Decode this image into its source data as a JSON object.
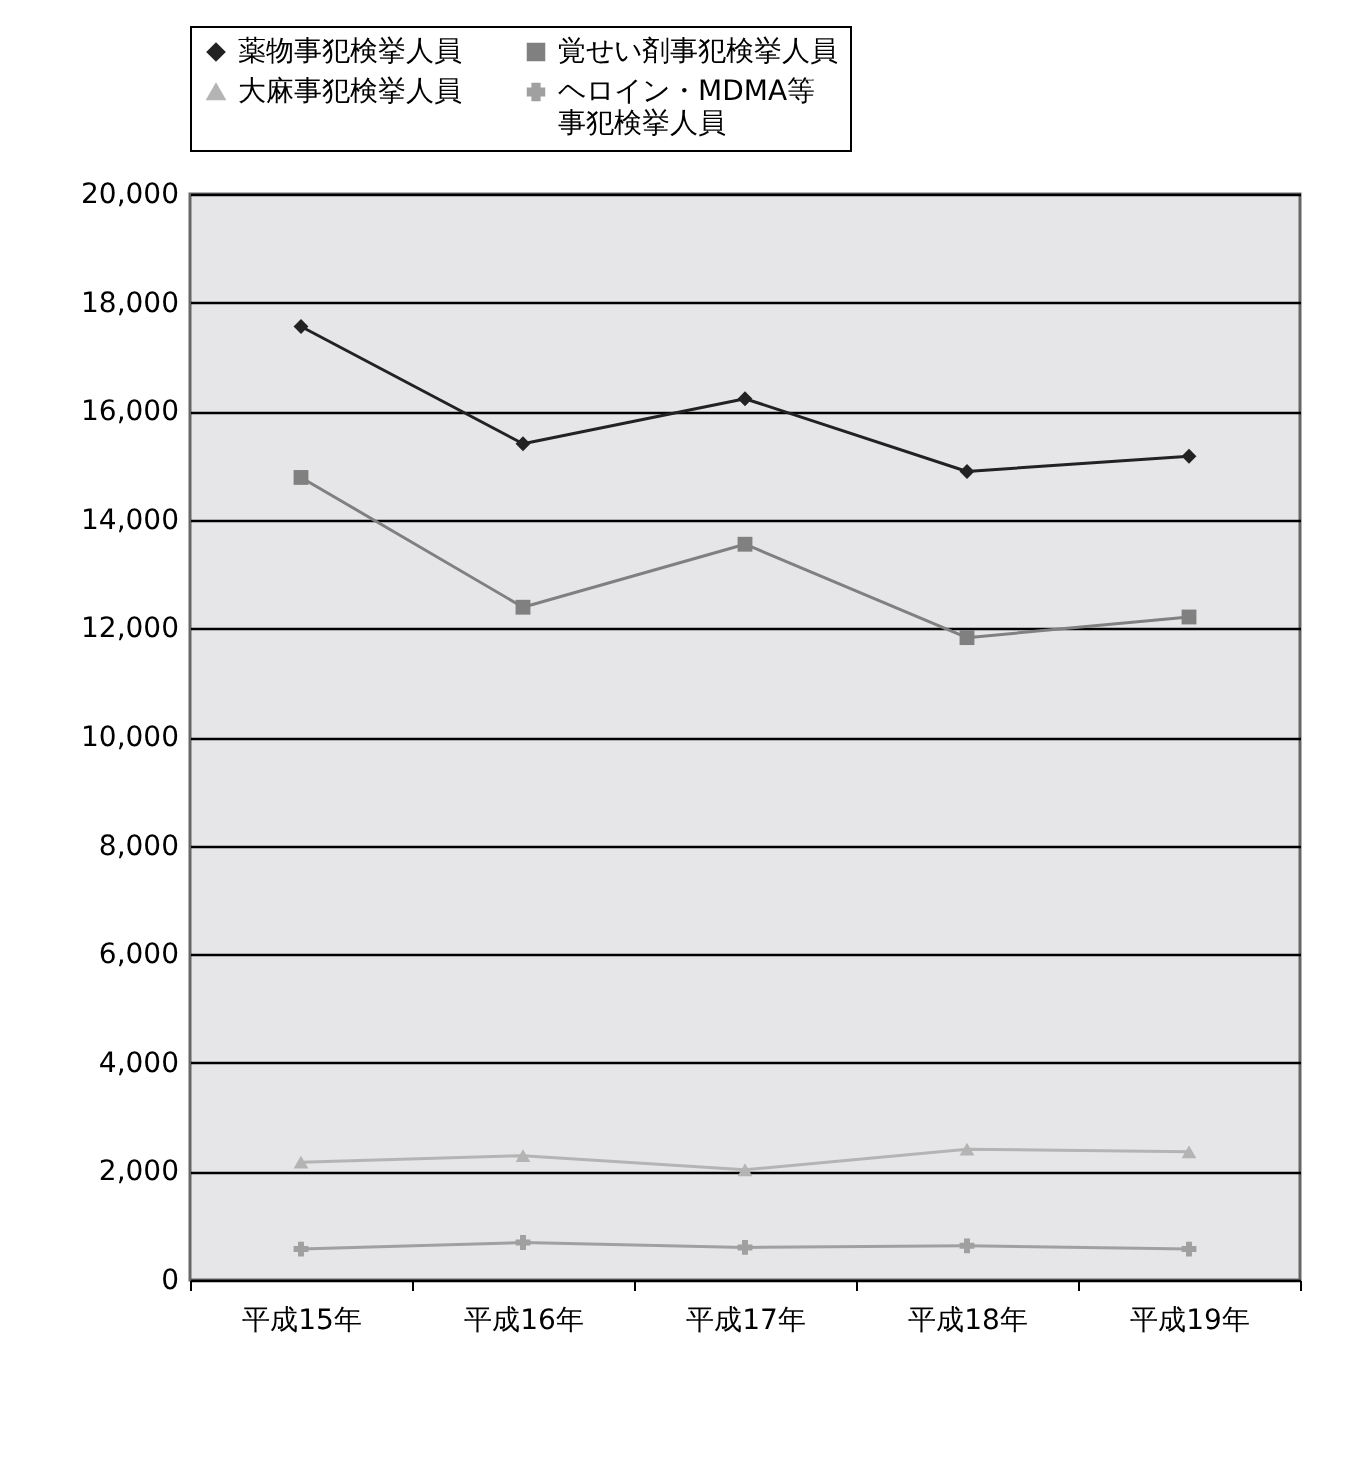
{
  "chart_data": {
    "type": "line",
    "categories": [
      "平成15年",
      "平成16年",
      "平成17年",
      "平成18年",
      "平成19年"
    ],
    "series": [
      {
        "name": "薬物事犯検挙人員",
        "color": "#222222",
        "marker": "diamond",
        "values": [
          17560,
          15400,
          16230,
          14890,
          15170
        ]
      },
      {
        "name": "覚せい剤事犯検挙人員",
        "color": "#808080",
        "marker": "square",
        "values": [
          14780,
          12390,
          13550,
          11830,
          12210
        ]
      },
      {
        "name": "大麻事犯検挙人員",
        "color": "#b4b4b4",
        "marker": "triangle",
        "values": [
          2170,
          2290,
          2030,
          2410,
          2360
        ]
      },
      {
        "name": "ヘロイン・MDMA等事犯検挙人員",
        "color": "#a0a0a0",
        "marker": "cross",
        "values": [
          570,
          690,
          600,
          630,
          570
        ]
      }
    ],
    "ylim": [
      0,
      20000
    ],
    "yticks": [
      0,
      {
        "value": 2000,
        "label": "2,000"
      },
      {
        "value": 4000,
        "label": "4,000"
      },
      {
        "value": 6000,
        "label": "6,000"
      },
      {
        "value": 8000,
        "label": "8,000"
      },
      {
        "value": 10000,
        "label": "10,000"
      },
      {
        "value": 12000,
        "label": "12,000"
      },
      {
        "value": 14000,
        "label": "14,000"
      },
      {
        "value": 16000,
        "label": "16,000"
      },
      {
        "value": 18000,
        "label": "18,000"
      },
      {
        "value": 20000,
        "label": "20,000"
      }
    ],
    "grid": "y",
    "legend": "top",
    "line_style": "solid"
  }
}
